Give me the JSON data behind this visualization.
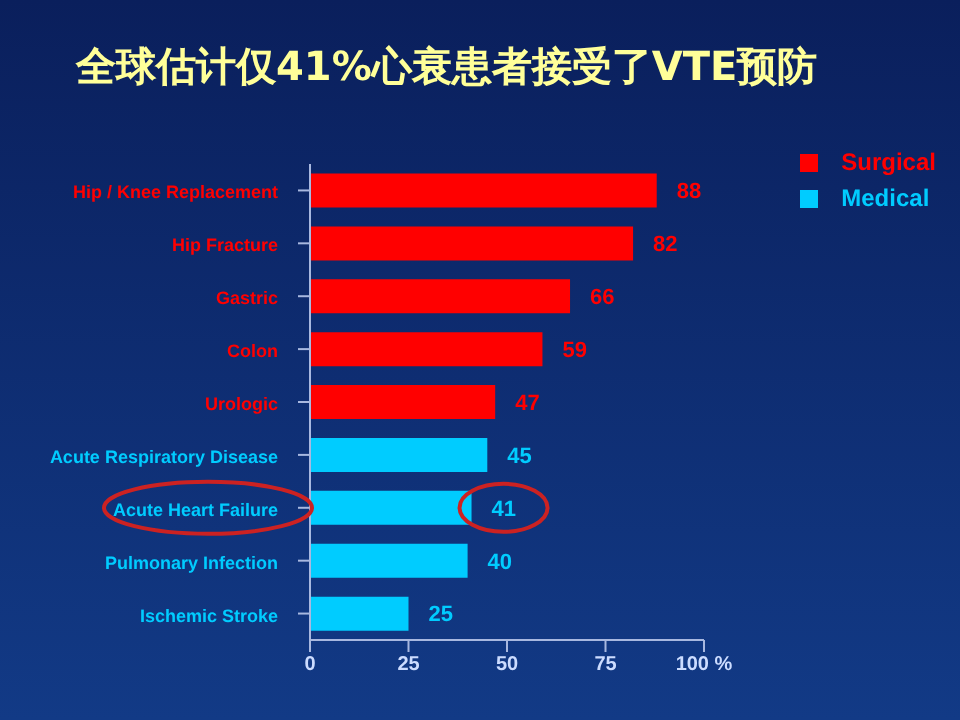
{
  "chart_data": {
    "type": "bar",
    "title": "全球估计仅41%心衰患者接受了VTE预防",
    "orientation": "horizontal",
    "stacked": true,
    "categories": [
      "Hip / Knee Replacement",
      "Hip Fracture",
      "Gastric",
      "Colon",
      "Urologic",
      "Acute Respiratory Disease",
      "Acute Heart Failure",
      "Pulmonary Infection",
      "Ischemic Stroke"
    ],
    "series": [
      {
        "name": "Surgical",
        "color": "#ff0000",
        "values": [
          88,
          82,
          66,
          59,
          47,
          null,
          null,
          null,
          null
        ]
      },
      {
        "name": "Medical",
        "color": "#00ccff",
        "values": [
          null,
          null,
          null,
          null,
          null,
          45,
          41,
          40,
          25
        ]
      }
    ],
    "xlim": [
      0,
      100
    ],
    "xticks": [
      0,
      25,
      50,
      75,
      {
        "value": 100,
        "label": "100 %"
      }
    ],
    "data_labels": true,
    "legend": "top right"
  }
}
